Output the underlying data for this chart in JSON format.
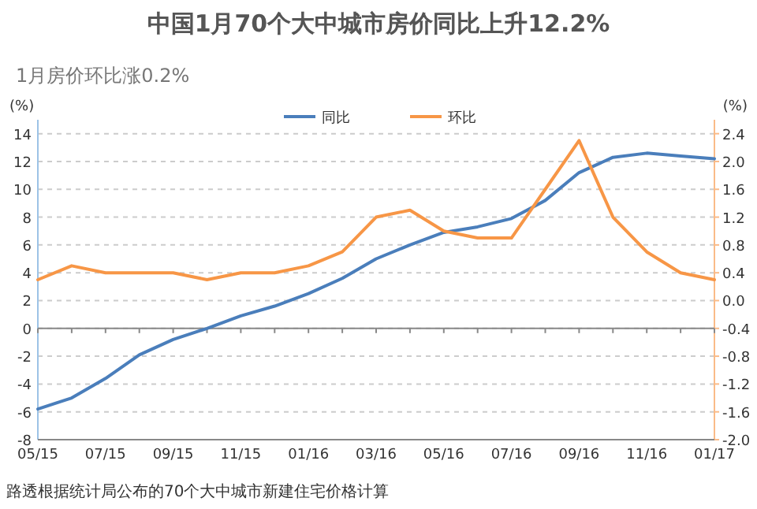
{
  "chart_data": {
    "type": "line",
    "title": "中国1月70个大中城市房价同比上升12.2%",
    "subtitle": "1月房价环比涨0.2%",
    "ylabel": "(%)",
    "y2label": "(%)",
    "categories": [
      "05/15",
      null,
      "07/15",
      null,
      "09/15",
      null,
      "11/15",
      null,
      "01/16",
      null,
      "03/16",
      null,
      "05/16",
      null,
      "07/16",
      null,
      "09/16",
      null,
      "11/16",
      null,
      "01/17"
    ],
    "series": [
      {
        "name": "同比",
        "color": "#4a7ebb",
        "values": [
          -5.8,
          -5.0,
          -3.6,
          -1.9,
          -0.8,
          0.0,
          0.9,
          1.6,
          2.5,
          3.6,
          5.0,
          6.0,
          6.9,
          7.3,
          7.9,
          9.2,
          11.2,
          12.3,
          12.6,
          12.4,
          12.2
        ]
      },
      {
        "name": "环比",
        "color": "#f79646",
        "axis": "y2",
        "values": [
          0.3,
          0.5,
          0.4,
          0.4,
          0.4,
          0.3,
          0.4,
          0.4,
          0.5,
          0.7,
          1.2,
          1.3,
          1.0,
          0.9,
          0.9,
          1.6,
          2.3,
          1.2,
          0.7,
          0.4,
          0.3
        ]
      }
    ],
    "ylim": [
      -8,
      15
    ],
    "yticks": [
      -8,
      -6,
      -4,
      -2,
      0,
      2,
      4,
      6,
      8,
      10,
      12,
      14
    ],
    "y2lim": [
      -2,
      2.6
    ],
    "y2ticks": [
      {
        "value": -2,
        "label": "-2.0"
      },
      {
        "value": -1.6,
        "label": "-1.6"
      },
      {
        "value": -1.2,
        "label": "-1.2"
      },
      {
        "value": -0.8,
        "label": "-0.8"
      },
      {
        "value": -0.4,
        "label": "-0.4"
      },
      {
        "value": 0,
        "label": "0.0"
      },
      {
        "value": 0.4,
        "label": "0.4"
      },
      {
        "value": 0.8,
        "label": "0.8"
      },
      {
        "value": 1.2,
        "label": "1.2"
      },
      {
        "value": 1.6,
        "label": "1.6"
      },
      {
        "value": 2,
        "label": "2.0"
      },
      {
        "value": 2.4,
        "label": "2.4"
      }
    ],
    "grid": "y",
    "legend": "top",
    "marker": "none",
    "line_style": "solid",
    "annotations": [
      "路透根据统计局公布的70个大中城市新建住宅价格计算"
    ]
  }
}
